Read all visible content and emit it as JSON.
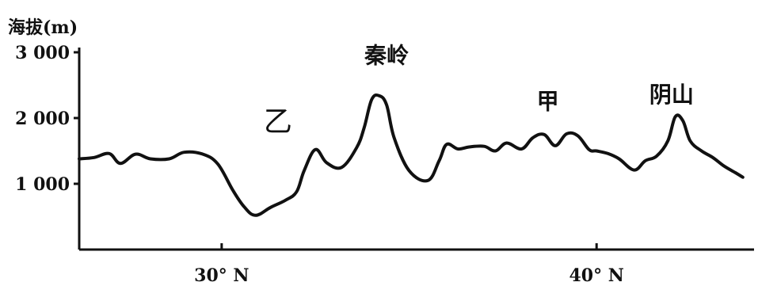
{
  "chart_data": {
    "type": "line",
    "ylabel": "海拔(m)",
    "y_ticks": [
      {
        "value": 1000,
        "label": "1 000"
      },
      {
        "value": 2000,
        "label": "2 000"
      },
      {
        "value": 3000,
        "label": "3 000"
      }
    ],
    "x_ticks": [
      {
        "value": 30,
        "label": "30° N"
      },
      {
        "value": 40,
        "label": "40° N"
      }
    ],
    "ylim": [
      0,
      3500
    ],
    "xlim": [
      26.2,
      44.2
    ],
    "grid": false,
    "series": [
      {
        "x": [
          26.2,
          26.6,
          27.0,
          27.3,
          27.7,
          28.1,
          28.6,
          29.0,
          29.5,
          29.9,
          30.3,
          30.6,
          30.9,
          31.3,
          31.7,
          32.0,
          32.2,
          32.5,
          32.8,
          33.2,
          33.6,
          33.8,
          34.0,
          34.2,
          34.4,
          34.6,
          35.0,
          35.5,
          35.8,
          36.0,
          36.3,
          36.6,
          37.0,
          37.3,
          37.6,
          38.0,
          38.3,
          38.6,
          38.9,
          39.2,
          39.5,
          39.8,
          40.0,
          40.3,
          40.6,
          41.0,
          41.3,
          41.6,
          41.9,
          42.1,
          42.3,
          42.5,
          42.8,
          43.1,
          43.4,
          43.7,
          43.9
        ],
        "y": [
          1380,
          1400,
          1460,
          1310,
          1450,
          1380,
          1380,
          1480,
          1450,
          1300,
          900,
          650,
          520,
          640,
          750,
          880,
          1200,
          1520,
          1320,
          1250,
          1550,
          1850,
          2280,
          2340,
          2200,
          1700,
          1200,
          1050,
          1350,
          1600,
          1530,
          1560,
          1570,
          1500,
          1620,
          1530,
          1700,
          1750,
          1580,
          1760,
          1730,
          1520,
          1500,
          1460,
          1380,
          1210,
          1350,
          1420,
          1650,
          2020,
          1960,
          1650,
          1500,
          1400,
          1270,
          1170,
          1100
        ]
      }
    ],
    "annotations": [
      {
        "text": "乙",
        "x": 31.5,
        "y": 1800
      },
      {
        "text": "秦岭",
        "x": 34.4,
        "y": 2840
      },
      {
        "text": "甲",
        "x": 38.7,
        "y": 2140
      },
      {
        "text": "阴山",
        "x": 42.0,
        "y": 2240
      }
    ]
  }
}
